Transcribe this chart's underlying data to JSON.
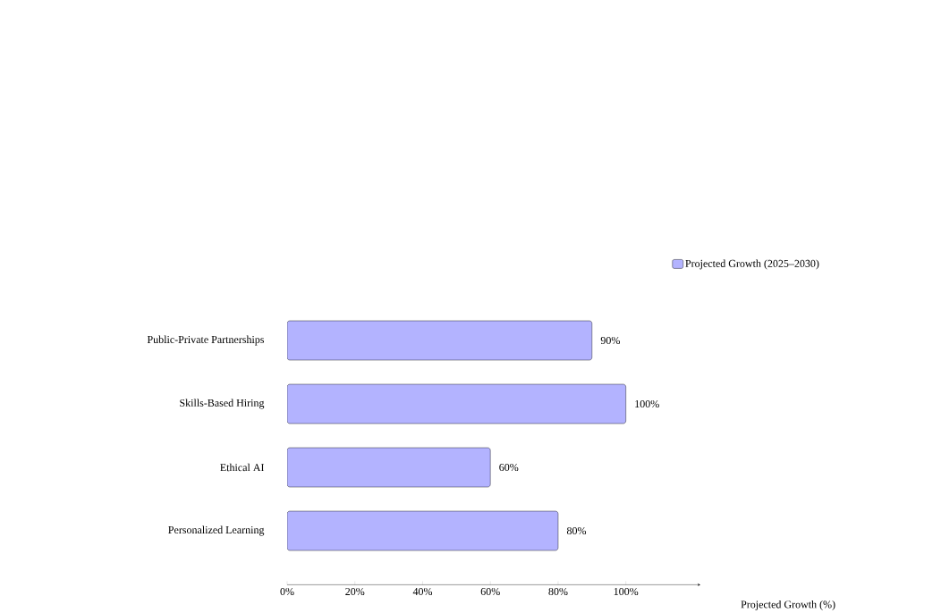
{
  "chart_data": {
    "type": "bar",
    "orientation": "horizontal",
    "categories": [
      "Public-Private Partnerships",
      "Skills-Based Hiring",
      "Ethical AI",
      "Personalized Learning"
    ],
    "series": [
      {
        "name": "Projected Growth (2025–2030)",
        "color": "#b3b3ff",
        "values": [
          90,
          100,
          60,
          80
        ],
        "value_labels": [
          "90%",
          "100%",
          "60%",
          "80%"
        ]
      }
    ],
    "xlim": [
      0,
      122
    ],
    "xticks": [
      {
        "value": 0,
        "label": "0%"
      },
      {
        "value": 20,
        "label": "20%"
      },
      {
        "value": 40,
        "label": "40%"
      },
      {
        "value": 60,
        "label": "60%"
      },
      {
        "value": 80,
        "label": "80%"
      },
      {
        "value": 100,
        "label": "100%"
      }
    ],
    "xlabel": "Projected Growth (%)",
    "legend": "top right"
  }
}
